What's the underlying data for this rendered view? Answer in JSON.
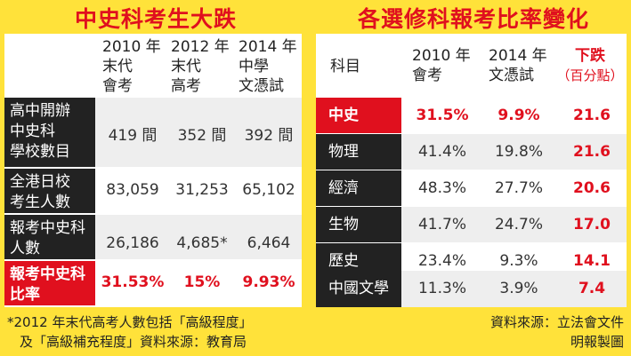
{
  "left": {
    "title": "中史科考生大跌",
    "headers": [
      [
        "2010 年",
        "末代",
        "會考"
      ],
      [
        "2012 年",
        "末代",
        "高考"
      ],
      [
        "2014 年",
        "中學",
        "文憑試"
      ]
    ],
    "rows": [
      {
        "label": [
          "高中開辦",
          "中史科",
          "學校數目"
        ],
        "values": [
          "419 間",
          "352 間",
          "392 間"
        ]
      },
      {
        "label": [
          "全港日校",
          "考生人數"
        ],
        "values": [
          "83,059",
          "31,253",
          "65,102"
        ]
      },
      {
        "label": [
          "報考中史科",
          "人數"
        ],
        "values": [
          "26,186",
          "4,685*",
          "6,464"
        ]
      },
      {
        "label": [
          "報考中史科",
          "比率"
        ],
        "values": [
          "31.53%",
          "15%",
          "9.93%"
        ]
      }
    ],
    "footnote": [
      "*2012 年末代高考人數包括「高級程度」",
      "及「高級補充程度」資料來源：教育局"
    ]
  },
  "right": {
    "title": "各選修科報考比率變化",
    "headers": {
      "subject": "科目",
      "y2010": [
        "2010 年",
        "會考"
      ],
      "y2014": [
        "2014 年",
        "文憑試"
      ],
      "drop": [
        "下跌",
        "（百分點）"
      ]
    },
    "rows": [
      {
        "subject": "中史",
        "y2010": "31.5%",
        "y2014": "9.9%",
        "drop": "21.6"
      },
      {
        "subject": "物理",
        "y2010": "41.4%",
        "y2014": "19.8%",
        "drop": "21.6"
      },
      {
        "subject": "經濟",
        "y2010": "48.3%",
        "y2014": "27.7%",
        "drop": "20.6"
      },
      {
        "subject": "生物",
        "y2010": "41.7%",
        "y2014": "24.7%",
        "drop": "17.0"
      },
      {
        "subject": "歷史",
        "y2010": "23.4%",
        "y2014": "9.3%",
        "drop": "14.1"
      },
      {
        "subject": "中國文學",
        "y2010": "11.3%",
        "y2014": "3.9%",
        "drop": "7.4"
      }
    ],
    "source": [
      "資料來源：立法會文件",
      "明報製圖"
    ]
  },
  "colors": {
    "background": "#FFE23A",
    "accent": "#E0101E",
    "label_bg": "#222222",
    "shade": "#EEEEEE"
  }
}
